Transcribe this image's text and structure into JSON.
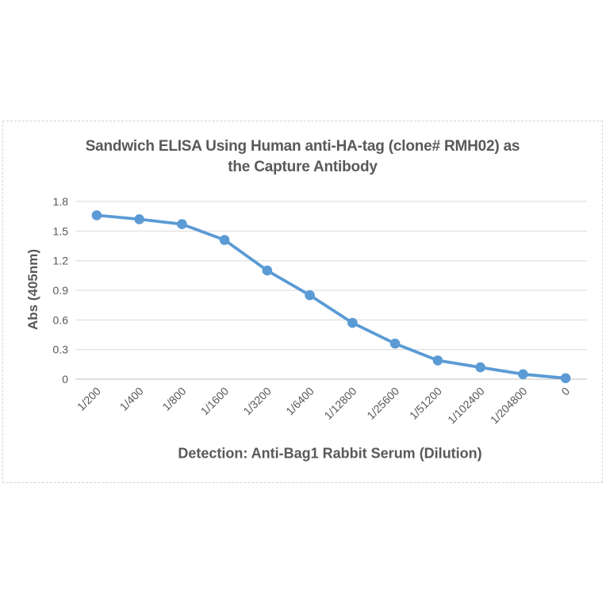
{
  "chart_data": {
    "type": "line",
    "title": "Sandwich ELISA Using Human anti-HA-tag (clone# RMH02) as the Capture Antibody",
    "title_lines": [
      "Sandwich ELISA Using Human anti-HA-tag (clone# RMH02) as",
      "the Capture Antibody"
    ],
    "xlabel": "Detection: Anti-Bag1 Rabbit Serum (Dilution)",
    "ylabel": "Abs (405nm)",
    "categories": [
      "1/200",
      "1/400",
      "1/800",
      "1/1600",
      "1/3200",
      "1/6400",
      "1/12800",
      "1/25600",
      "1/51200",
      "1/102400",
      "1/204800",
      "0"
    ],
    "series": [
      {
        "name": "Anti-Bag1 Rabbit Serum",
        "values": [
          1.66,
          1.62,
          1.57,
          1.41,
          1.1,
          0.85,
          0.57,
          0.36,
          0.19,
          0.12,
          0.05,
          0.01
        ]
      }
    ],
    "ylim": [
      0,
      1.8
    ],
    "yticks": [
      0,
      0.3,
      0.6,
      0.9,
      1.2,
      1.5,
      1.8
    ],
    "ytick_labels": [
      "0",
      "0.3",
      "0.6",
      "0.9",
      "1.2",
      "1.5",
      "1.8"
    ],
    "x_tick_rotation": -45,
    "grid": true,
    "legend_position": "none",
    "marker": "circle"
  },
  "colors": {
    "series": "#5B9BD5",
    "gridline": "#D9D9D9",
    "axis_line": "#BFBFBF",
    "text": "#595959",
    "frame_border": "#D5D5D5",
    "background": "#FFFFFF"
  }
}
